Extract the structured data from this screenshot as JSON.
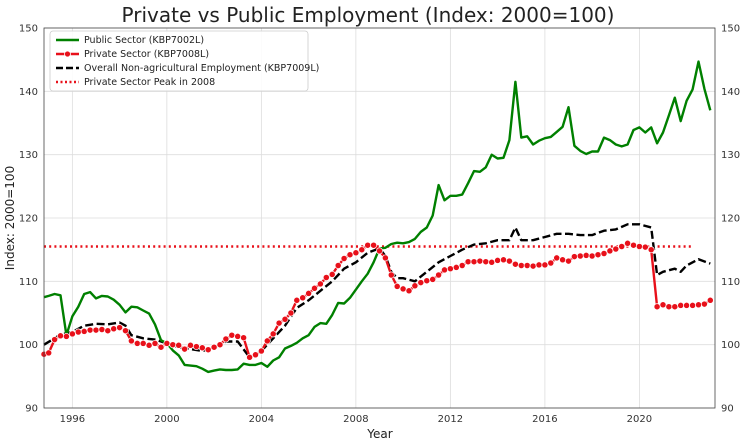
{
  "chart_data": {
    "type": "line",
    "title": "Private vs Public Employment (Index: 2000=100)",
    "xlabel": "Year",
    "ylabel": "Index: 2000=100",
    "xlim": [
      1994.8,
      2023.2
    ],
    "ylim": [
      90,
      150
    ],
    "x_ticks": [
      "1996",
      "2000",
      "2004",
      "2008",
      "2012",
      "2016",
      "2020"
    ],
    "x_tick_values": [
      1996,
      2000,
      2004,
      2008,
      2012,
      2016,
      2020
    ],
    "y_ticks": [
      90,
      100,
      110,
      120,
      130,
      140,
      150
    ],
    "y_tick_labels": [
      "90",
      "100",
      "110",
      "120",
      "130",
      "140",
      "150"
    ],
    "grid": true,
    "legend_position": "top-left",
    "colors": {
      "public": "#008000",
      "private": "#e8101a",
      "overall": "#000000",
      "peak": "#e8101a"
    },
    "series": [
      {
        "name": "Public Sector (KBP7002L)",
        "style": "solid",
        "points": [
          [
            1994.8,
            107.5
          ],
          [
            1995.0,
            107.7
          ],
          [
            1995.25,
            108.0
          ],
          [
            1995.5,
            107.8
          ],
          [
            1995.75,
            101.5
          ],
          [
            1996.0,
            104.5
          ],
          [
            1996.25,
            106.0
          ],
          [
            1996.5,
            108.0
          ],
          [
            1996.75,
            108.3
          ],
          [
            1997.0,
            107.3
          ],
          [
            1997.25,
            107.7
          ],
          [
            1997.5,
            107.6
          ],
          [
            1997.75,
            107.1
          ],
          [
            1998.0,
            106.3
          ],
          [
            1998.25,
            105.1
          ],
          [
            1998.5,
            106.0
          ],
          [
            1998.75,
            105.9
          ],
          [
            1999.0,
            105.4
          ],
          [
            1999.25,
            104.9
          ],
          [
            1999.5,
            103.2
          ],
          [
            1999.75,
            100.7
          ],
          [
            2000.0,
            100.2
          ],
          [
            2000.25,
            99.1
          ],
          [
            2000.5,
            98.3
          ],
          [
            2000.75,
            96.8
          ],
          [
            2001.0,
            96.7
          ],
          [
            2001.25,
            96.6
          ],
          [
            2001.5,
            96.2
          ],
          [
            2001.75,
            95.7
          ],
          [
            2002.0,
            95.9
          ],
          [
            2002.25,
            96.1
          ],
          [
            2002.5,
            96.0
          ],
          [
            2002.75,
            96.0
          ],
          [
            2003.0,
            96.1
          ],
          [
            2003.25,
            97.0
          ],
          [
            2003.5,
            96.8
          ],
          [
            2003.75,
            96.8
          ],
          [
            2004.0,
            97.1
          ],
          [
            2004.25,
            96.5
          ],
          [
            2004.5,
            97.5
          ],
          [
            2004.75,
            98.0
          ],
          [
            2005.0,
            99.4
          ],
          [
            2005.25,
            99.8
          ],
          [
            2005.5,
            100.3
          ],
          [
            2005.75,
            101.0
          ],
          [
            2006.0,
            101.5
          ],
          [
            2006.25,
            102.8
          ],
          [
            2006.5,
            103.4
          ],
          [
            2006.75,
            103.3
          ],
          [
            2007.0,
            104.7
          ],
          [
            2007.25,
            106.6
          ],
          [
            2007.5,
            106.5
          ],
          [
            2007.75,
            107.4
          ],
          [
            2008.0,
            108.7
          ],
          [
            2008.25,
            110.0
          ],
          [
            2008.5,
            111.2
          ],
          [
            2008.75,
            113.0
          ],
          [
            2009.0,
            115.2
          ],
          [
            2009.25,
            115.3
          ],
          [
            2009.5,
            115.9
          ],
          [
            2009.75,
            116.1
          ],
          [
            2010.0,
            116.0
          ],
          [
            2010.25,
            116.2
          ],
          [
            2010.5,
            116.7
          ],
          [
            2010.75,
            117.8
          ],
          [
            2011.0,
            118.5
          ],
          [
            2011.25,
            120.4
          ],
          [
            2011.5,
            125.2
          ],
          [
            2011.75,
            122.8
          ],
          [
            2012.0,
            123.5
          ],
          [
            2012.25,
            123.5
          ],
          [
            2012.5,
            123.7
          ],
          [
            2012.75,
            125.5
          ],
          [
            2013.0,
            127.4
          ],
          [
            2013.25,
            127.3
          ],
          [
            2013.5,
            128.0
          ],
          [
            2013.75,
            130.0
          ],
          [
            2014.0,
            129.4
          ],
          [
            2014.25,
            129.5
          ],
          [
            2014.5,
            132.3
          ],
          [
            2014.75,
            141.5
          ],
          [
            2015.0,
            132.7
          ],
          [
            2015.25,
            132.9
          ],
          [
            2015.5,
            131.6
          ],
          [
            2015.75,
            132.2
          ],
          [
            2016.0,
            132.6
          ],
          [
            2016.25,
            132.8
          ],
          [
            2016.5,
            133.6
          ],
          [
            2016.75,
            134.4
          ],
          [
            2017.0,
            137.5
          ],
          [
            2017.25,
            131.4
          ],
          [
            2017.5,
            130.6
          ],
          [
            2017.75,
            130.1
          ],
          [
            2018.0,
            130.5
          ],
          [
            2018.25,
            130.5
          ],
          [
            2018.5,
            132.7
          ],
          [
            2018.75,
            132.3
          ],
          [
            2019.0,
            131.6
          ],
          [
            2019.25,
            131.3
          ],
          [
            2019.5,
            131.6
          ],
          [
            2019.75,
            133.9
          ],
          [
            2020.0,
            134.3
          ],
          [
            2020.25,
            133.5
          ],
          [
            2020.5,
            134.3
          ],
          [
            2020.75,
            131.8
          ],
          [
            2021.0,
            133.5
          ],
          [
            2021.25,
            136.2
          ],
          [
            2021.5,
            139.0
          ],
          [
            2021.75,
            135.3
          ],
          [
            2022.0,
            138.5
          ],
          [
            2022.25,
            140.3
          ],
          [
            2022.5,
            144.7
          ],
          [
            2022.75,
            140.4
          ],
          [
            2023.0,
            137.0
          ]
        ]
      },
      {
        "name": "Private Sector (KBP7008L)",
        "style": "solid-markers",
        "points": [
          [
            1994.8,
            98.5
          ],
          [
            1995.0,
            98.7
          ],
          [
            1995.25,
            100.8
          ],
          [
            1995.5,
            101.4
          ],
          [
            1995.75,
            101.3
          ],
          [
            1996.0,
            101.7
          ],
          [
            1996.25,
            102.0
          ],
          [
            1996.5,
            102.1
          ],
          [
            1996.75,
            102.3
          ],
          [
            1997.0,
            102.3
          ],
          [
            1997.25,
            102.4
          ],
          [
            1997.5,
            102.2
          ],
          [
            1997.75,
            102.5
          ],
          [
            1998.0,
            102.7
          ],
          [
            1998.25,
            102.2
          ],
          [
            1998.5,
            100.6
          ],
          [
            1998.75,
            100.2
          ],
          [
            1999.0,
            100.2
          ],
          [
            1999.25,
            99.9
          ],
          [
            1999.5,
            100.2
          ],
          [
            1999.75,
            99.6
          ],
          [
            2000.0,
            100.2
          ],
          [
            2000.25,
            100.0
          ],
          [
            2000.5,
            99.9
          ],
          [
            2000.75,
            99.3
          ],
          [
            2001.0,
            99.9
          ],
          [
            2001.25,
            99.7
          ],
          [
            2001.5,
            99.5
          ],
          [
            2001.75,
            99.2
          ],
          [
            2002.0,
            99.6
          ],
          [
            2002.25,
            100.0
          ],
          [
            2002.5,
            100.9
          ],
          [
            2002.75,
            101.5
          ],
          [
            2003.0,
            101.3
          ],
          [
            2003.25,
            101.1
          ],
          [
            2003.5,
            98.0
          ],
          [
            2003.75,
            98.4
          ],
          [
            2004.0,
            99.0
          ],
          [
            2004.25,
            100.6
          ],
          [
            2004.5,
            101.7
          ],
          [
            2004.75,
            103.4
          ],
          [
            2005.0,
            104.0
          ],
          [
            2005.25,
            105.0
          ],
          [
            2005.5,
            107.0
          ],
          [
            2005.75,
            107.4
          ],
          [
            2006.0,
            108.1
          ],
          [
            2006.25,
            108.9
          ],
          [
            2006.5,
            109.6
          ],
          [
            2006.75,
            110.6
          ],
          [
            2007.0,
            111.1
          ],
          [
            2007.25,
            112.5
          ],
          [
            2007.5,
            113.6
          ],
          [
            2007.75,
            114.2
          ],
          [
            2008.0,
            114.5
          ],
          [
            2008.25,
            115.0
          ],
          [
            2008.5,
            115.7
          ],
          [
            2008.75,
            115.7
          ],
          [
            2009.0,
            114.8
          ],
          [
            2009.25,
            113.7
          ],
          [
            2009.5,
            111.0
          ],
          [
            2009.75,
            109.2
          ],
          [
            2010.0,
            108.8
          ],
          [
            2010.25,
            108.5
          ],
          [
            2010.5,
            109.3
          ],
          [
            2010.75,
            109.8
          ],
          [
            2011.0,
            110.1
          ],
          [
            2011.25,
            110.3
          ],
          [
            2011.5,
            111.0
          ],
          [
            2011.75,
            111.8
          ],
          [
            2012.0,
            112.0
          ],
          [
            2012.25,
            112.2
          ],
          [
            2012.5,
            112.5
          ],
          [
            2012.75,
            113.1
          ],
          [
            2013.0,
            113.1
          ],
          [
            2013.25,
            113.2
          ],
          [
            2013.5,
            113.1
          ],
          [
            2013.75,
            113.0
          ],
          [
            2014.0,
            113.3
          ],
          [
            2014.25,
            113.4
          ],
          [
            2014.5,
            113.2
          ],
          [
            2014.75,
            112.7
          ],
          [
            2015.0,
            112.5
          ],
          [
            2015.25,
            112.5
          ],
          [
            2015.5,
            112.4
          ],
          [
            2015.75,
            112.6
          ],
          [
            2016.0,
            112.6
          ],
          [
            2016.25,
            112.9
          ],
          [
            2016.5,
            113.7
          ],
          [
            2016.75,
            113.4
          ],
          [
            2017.0,
            113.2
          ],
          [
            2017.25,
            113.9
          ],
          [
            2017.5,
            114.0
          ],
          [
            2017.75,
            114.1
          ],
          [
            2018.0,
            114.0
          ],
          [
            2018.25,
            114.2
          ],
          [
            2018.5,
            114.4
          ],
          [
            2018.75,
            114.8
          ],
          [
            2019.0,
            115.1
          ],
          [
            2019.25,
            115.5
          ],
          [
            2019.5,
            116.0
          ],
          [
            2019.75,
            115.7
          ],
          [
            2020.0,
            115.5
          ],
          [
            2020.25,
            115.4
          ],
          [
            2020.5,
            115.0
          ],
          [
            2020.75,
            106.0
          ],
          [
            2021.0,
            106.3
          ],
          [
            2021.25,
            106.0
          ],
          [
            2021.5,
            106.0
          ],
          [
            2021.75,
            106.2
          ],
          [
            2022.0,
            106.2
          ],
          [
            2022.25,
            106.2
          ],
          [
            2022.5,
            106.3
          ],
          [
            2022.75,
            106.4
          ],
          [
            2023.0,
            107.0
          ]
        ]
      },
      {
        "name": "Overall Non-agricultural Employment (KBP7009L)",
        "style": "dashed",
        "points": [
          [
            1994.8,
            100.0
          ],
          [
            1995.25,
            101.0
          ],
          [
            1995.5,
            101.6
          ],
          [
            1996.0,
            102.0
          ],
          [
            1996.5,
            103.0
          ],
          [
            1997.0,
            103.3
          ],
          [
            1997.5,
            103.2
          ],
          [
            1998.0,
            103.5
          ],
          [
            1998.25,
            103.0
          ],
          [
            1998.5,
            101.5
          ],
          [
            1999.0,
            101.0
          ],
          [
            1999.5,
            100.8
          ],
          [
            2000.0,
            100.2
          ],
          [
            2000.5,
            99.6
          ],
          [
            2001.0,
            99.3
          ],
          [
            2001.5,
            99.0
          ],
          [
            2002.0,
            99.5
          ],
          [
            2002.5,
            100.5
          ],
          [
            2003.0,
            100.5
          ],
          [
            2003.5,
            98.0
          ],
          [
            2004.0,
            99.0
          ],
          [
            2004.5,
            101.0
          ],
          [
            2005.0,
            103.0
          ],
          [
            2005.5,
            105.8
          ],
          [
            2006.0,
            107.0
          ],
          [
            2006.5,
            108.5
          ],
          [
            2007.0,
            110.0
          ],
          [
            2007.5,
            112.0
          ],
          [
            2008.0,
            113.0
          ],
          [
            2008.5,
            114.5
          ],
          [
            2009.0,
            115.2
          ],
          [
            2009.25,
            114.0
          ],
          [
            2009.5,
            111.5
          ],
          [
            2009.75,
            110.5
          ],
          [
            2010.0,
            110.5
          ],
          [
            2010.5,
            110.0
          ],
          [
            2011.0,
            111.5
          ],
          [
            2011.5,
            113.0
          ],
          [
            2012.0,
            114.0
          ],
          [
            2012.5,
            115.0
          ],
          [
            2013.0,
            115.8
          ],
          [
            2013.5,
            116.0
          ],
          [
            2014.0,
            116.5
          ],
          [
            2014.5,
            116.5
          ],
          [
            2014.75,
            118.5
          ],
          [
            2015.0,
            116.5
          ],
          [
            2015.5,
            116.5
          ],
          [
            2016.0,
            117.0
          ],
          [
            2016.5,
            117.5
          ],
          [
            2017.0,
            117.5
          ],
          [
            2017.5,
            117.3
          ],
          [
            2018.0,
            117.3
          ],
          [
            2018.5,
            118.0
          ],
          [
            2019.0,
            118.2
          ],
          [
            2019.5,
            119.0
          ],
          [
            2020.0,
            119.0
          ],
          [
            2020.5,
            118.5
          ],
          [
            2020.75,
            111.0
          ],
          [
            2021.0,
            111.5
          ],
          [
            2021.5,
            112.0
          ],
          [
            2021.75,
            111.5
          ],
          [
            2022.0,
            112.5
          ],
          [
            2022.5,
            113.5
          ],
          [
            2023.0,
            112.8
          ]
        ]
      },
      {
        "name": "Private Sector Peak in 2008",
        "style": "dotted",
        "value": 115.5
      }
    ]
  }
}
